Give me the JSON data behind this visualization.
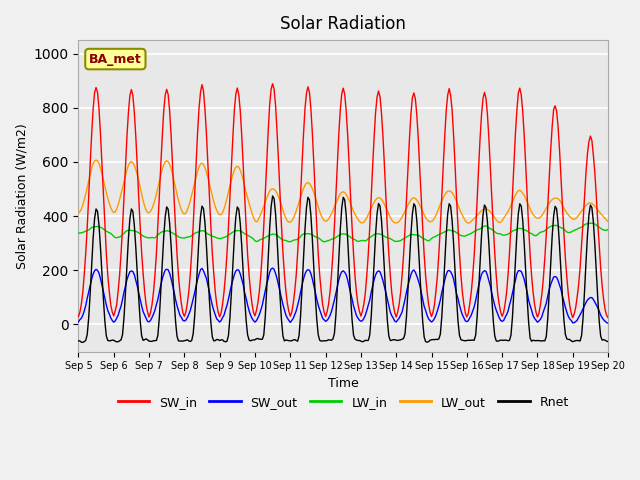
{
  "title": "Solar Radiation",
  "xlabel": "Time",
  "ylabel": "Solar Radiation (W/m2)",
  "ylim": [
    -100,
    1050
  ],
  "xlim": [
    0,
    360
  ],
  "annotation": "BA_met",
  "legend_labels": [
    "SW_in",
    "SW_out",
    "LW_in",
    "LW_out",
    "Rnet"
  ],
  "colors": {
    "SW_in": "#ff0000",
    "SW_out": "#0000ff",
    "LW_in": "#00cc00",
    "LW_out": "#ff9900",
    "Rnet": "#000000"
  },
  "xtick_labels": [
    "Sep 5",
    "Sep 6",
    "Sep 7",
    "Sep 8",
    "Sep 9",
    "Sep 10",
    "Sep 11",
    "Sep 12",
    "Sep 13",
    "Sep 14",
    "Sep 15",
    "Sep 16",
    "Sep 17",
    "Sep 18",
    "Sep 19",
    "Sep 20"
  ],
  "xtick_positions": [
    0,
    24,
    48,
    72,
    96,
    120,
    144,
    168,
    192,
    216,
    240,
    264,
    288,
    312,
    336,
    360
  ],
  "background_color": "#e8e8e8",
  "grid_color": "#ffffff",
  "fig_color": "#f0f0f0"
}
